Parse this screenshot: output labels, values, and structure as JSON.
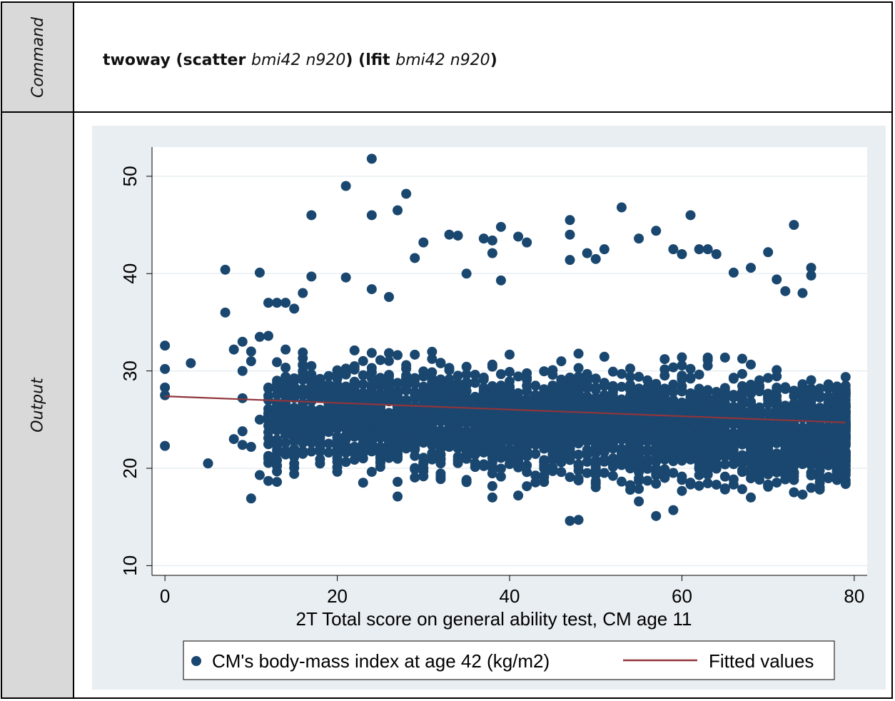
{
  "labels": {
    "command": "Command",
    "output": "Output"
  },
  "command": {
    "kw1": "twoway (",
    "cmd1": "scatter",
    "vars1": "bmi42 n920",
    "mid": ") (",
    "cmd2": "lfit",
    "vars2": "bmi42 n920",
    "end": ")"
  },
  "colors": {
    "marker": "#1a476f",
    "fit": "#90353b",
    "plot_bg": "#ffffff",
    "graph_bg": "#e9eef2",
    "grid": "#e9eef2"
  },
  "chart_data": {
    "type": "scatter",
    "xlabel": "2T Total score on general ability test, CM age 11",
    "ylabel": "",
    "xlim": [
      -1.5,
      81.5
    ],
    "ylim": [
      9,
      53
    ],
    "xticks": [
      0,
      20,
      40,
      60,
      80
    ],
    "yticks": [
      10,
      20,
      30,
      40,
      50
    ],
    "grid": true,
    "legend": "bottom",
    "series": [
      {
        "name": "CM's body-mass index at age 42 (kg/m2)",
        "kind": "scatter",
        "outliers": [
          [
            0,
            32.6
          ],
          [
            0,
            30.2
          ],
          [
            0,
            28.3
          ],
          [
            0,
            27.5
          ],
          [
            0,
            22.3
          ],
          [
            3,
            30.8
          ],
          [
            5,
            20.5
          ],
          [
            7,
            40.4
          ],
          [
            7,
            36
          ],
          [
            8,
            32.2
          ],
          [
            8,
            23
          ],
          [
            9,
            33
          ],
          [
            9,
            30
          ],
          [
            9,
            27.2
          ],
          [
            9,
            23.8
          ],
          [
            9,
            22.4
          ],
          [
            10,
            32
          ],
          [
            10,
            31
          ],
          [
            10,
            16.9
          ],
          [
            10,
            22.2
          ],
          [
            11,
            40.1
          ],
          [
            11,
            33.5
          ],
          [
            11,
            25
          ],
          [
            11,
            19.3
          ],
          [
            12,
            37
          ],
          [
            12,
            33.6
          ],
          [
            12,
            27
          ],
          [
            12,
            21
          ],
          [
            12,
            18.7
          ],
          [
            13,
            37
          ],
          [
            13,
            18.6
          ],
          [
            17,
            46
          ],
          [
            17,
            39.7
          ],
          [
            21,
            49
          ],
          [
            21,
            39.6
          ],
          [
            24,
            51.8
          ],
          [
            24,
            46
          ],
          [
            24,
            38.4
          ],
          [
            26,
            37.6
          ],
          [
            27,
            46.5
          ],
          [
            28,
            48.2
          ],
          [
            29,
            41.6
          ],
          [
            30,
            43.2
          ],
          [
            33,
            44
          ],
          [
            34,
            43.9
          ],
          [
            35,
            40
          ],
          [
            37,
            43.6
          ],
          [
            38,
            43.4
          ],
          [
            38,
            42.1
          ],
          [
            39,
            44.8
          ],
          [
            39,
            39.3
          ],
          [
            41,
            43.8
          ],
          [
            42,
            43.2
          ],
          [
            47,
            45.5
          ],
          [
            47,
            44
          ],
          [
            47,
            41.4
          ],
          [
            49,
            42.1
          ],
          [
            50,
            41.5
          ],
          [
            51,
            42.5
          ],
          [
            53,
            46.8
          ],
          [
            55,
            43.6
          ],
          [
            57,
            44.4
          ],
          [
            59,
            42.5
          ],
          [
            60,
            42
          ],
          [
            61,
            46
          ],
          [
            62,
            42.5
          ],
          [
            63,
            42.5
          ],
          [
            64,
            42
          ],
          [
            70,
            42.2
          ],
          [
            73,
            45
          ],
          [
            75,
            40.6
          ],
          [
            75,
            39.8
          ],
          [
            74,
            38
          ],
          [
            47,
            14.6
          ],
          [
            48,
            14.7
          ],
          [
            55,
            16.6
          ],
          [
            57,
            15.1
          ],
          [
            59,
            15.7
          ],
          [
            38,
            17
          ],
          [
            41,
            17.2
          ],
          [
            27,
            17.1
          ],
          [
            68,
            17
          ],
          [
            74,
            17.3
          ],
          [
            78,
            19.7
          ],
          [
            79,
            22.9
          ],
          [
            79,
            28.1
          ],
          [
            77,
            28.2
          ],
          [
            77,
            25.8
          ],
          [
            78,
            23.4
          ],
          [
            76,
            20.2
          ],
          [
            78,
            22.2
          ],
          [
            5,
            20.5
          ],
          [
            14,
            37
          ],
          [
            16,
            38
          ],
          [
            15,
            36.4
          ],
          [
            66,
            40.1
          ],
          [
            68,
            40.6
          ],
          [
            71,
            39.4
          ],
          [
            72,
            38.2
          ]
        ]
      },
      {
        "name": "Fitted values",
        "kind": "line",
        "x": [
          0,
          79
        ],
        "y": [
          27.4,
          24.7
        ]
      }
    ]
  }
}
